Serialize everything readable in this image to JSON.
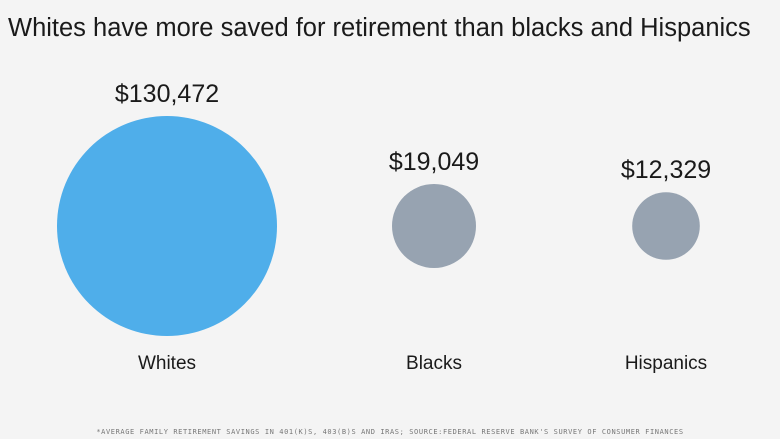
{
  "chart_data": {
    "type": "bubble",
    "title": "Whites have more saved for retirement than blacks and Hispanics",
    "categories": [
      "Whites",
      "Blacks",
      "Hispanics"
    ],
    "values": [
      130472,
      19049,
      12329
    ],
    "value_labels": [
      "$130,472",
      "$19,049",
      "$12,329"
    ],
    "colors": [
      "#4faeea",
      "#97a3b1",
      "#97a3b1"
    ],
    "footnote": "*AVERAGE FAMILY RETIREMENT SAVINGS IN 401(K)S, 403(B)S AND IRAS; SOURCE:FEDERAL RESERVE BANK'S SURVEY OF CONSUMER FINANCES"
  }
}
